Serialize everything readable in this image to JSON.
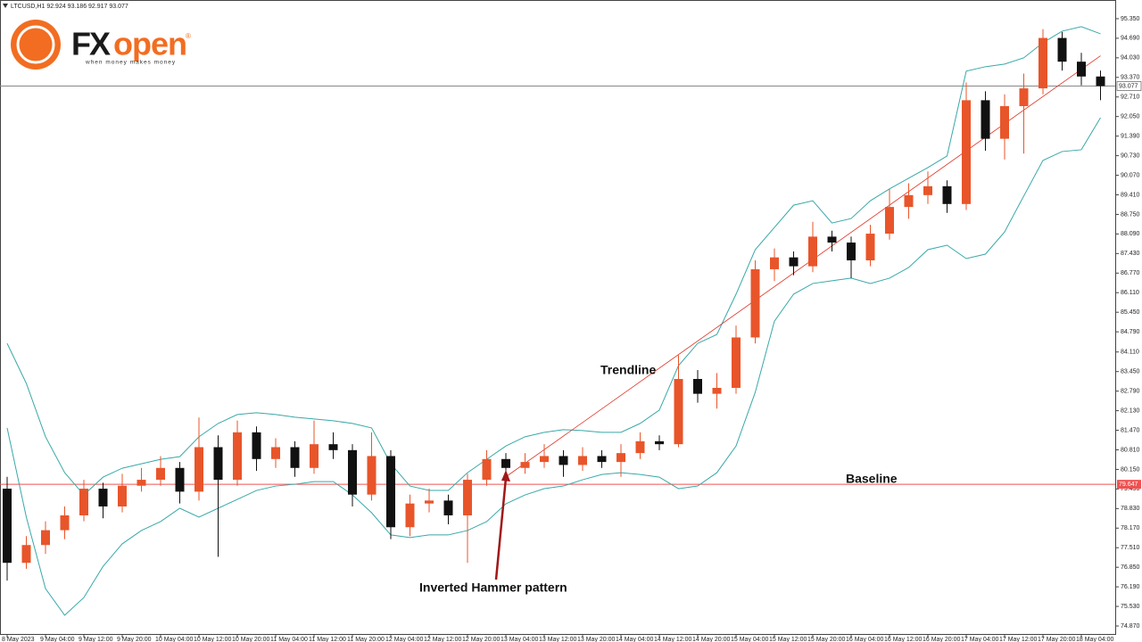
{
  "header": "LTCUSD,H1  92.924 93.186 92.917 93.077",
  "logo": {
    "brand_fx": "FX",
    "brand_open": "open",
    "mark": "®",
    "tagline": "when money makes money"
  },
  "chart_data": {
    "type": "candlestick",
    "categories": [
      "8 May 2023",
      null,
      "9 May 04:00",
      null,
      "9 May 12:00",
      null,
      "9 May 20:00",
      null,
      "10 May 04:00",
      null,
      "10 May 12:00",
      null,
      "10 May 20:00",
      null,
      "11 May 04:00",
      null,
      "11 May 12:00",
      null,
      "11 May 20:00",
      null,
      "12 May 04:00",
      null,
      "12 May 12:00",
      null,
      "12 May 20:00",
      null,
      "13 May 04:00",
      null,
      "13 May 12:00",
      null,
      "13 May 20:00",
      null,
      "14 May 04:00",
      null,
      "14 May 12:00",
      null,
      "14 May 20:00",
      null,
      "15 May 04:00",
      null,
      "15 May 12:00",
      null,
      "15 May 20:00",
      null,
      "16 May 04:00",
      null,
      "16 May 12:00",
      null,
      "16 May 20:00",
      null,
      "17 May 04:00",
      null,
      "17 May 12:00",
      null,
      "17 May 20:00",
      null,
      "18 May 04:00",
      null
    ],
    "open": [
      79.5,
      77.0,
      77.6,
      78.1,
      78.6,
      79.5,
      78.9,
      79.6,
      79.8,
      80.2,
      79.4,
      80.9,
      79.8,
      81.4,
      80.5,
      80.9,
      80.2,
      81.0,
      80.8,
      79.3,
      80.6,
      78.2,
      79.0,
      79.1,
      78.6,
      79.8,
      80.5,
      80.2,
      80.4,
      80.6,
      80.3,
      80.6,
      80.4,
      80.7,
      81.1,
      81.0,
      83.2,
      82.7,
      82.9,
      84.6,
      86.9,
      87.3,
      87.0,
      88.0,
      87.8,
      87.2,
      88.1,
      89.0,
      89.4,
      89.7,
      89.1,
      92.6,
      91.3,
      92.4,
      93.0,
      94.7,
      93.9,
      93.4
    ],
    "high": [
      79.9,
      77.9,
      78.4,
      78.9,
      79.8,
      79.7,
      80.0,
      80.2,
      80.6,
      80.4,
      81.9,
      81.3,
      81.8,
      81.6,
      81.2,
      81.1,
      81.8,
      81.4,
      81.0,
      81.4,
      80.8,
      79.3,
      79.5,
      79.3,
      80.0,
      80.8,
      80.7,
      80.7,
      81.0,
      80.8,
      80.9,
      80.8,
      81.0,
      81.4,
      81.3,
      84.0,
      83.5,
      83.4,
      85.0,
      87.2,
      87.6,
      87.5,
      88.5,
      88.2,
      88.0,
      88.4,
      89.6,
      89.8,
      90.2,
      89.9,
      93.2,
      92.9,
      92.8,
      93.5,
      95.0,
      94.9,
      94.2,
      93.6
    ],
    "low": [
      76.4,
      76.8,
      77.3,
      77.8,
      78.4,
      78.5,
      78.7,
      79.4,
      79.6,
      79.0,
      79.1,
      77.2,
      79.6,
      80.1,
      80.2,
      79.9,
      80.0,
      80.5,
      78.9,
      79.1,
      77.8,
      77.9,
      78.7,
      78.3,
      77.0,
      79.6,
      80.0,
      80.0,
      80.2,
      79.9,
      80.1,
      80.2,
      79.9,
      80.5,
      80.8,
      80.9,
      82.4,
      82.2,
      82.7,
      84.4,
      86.5,
      86.7,
      86.8,
      87.5,
      86.6,
      87.0,
      87.9,
      88.6,
      89.1,
      88.8,
      88.9,
      90.9,
      90.6,
      90.8,
      92.8,
      93.6,
      93.1,
      92.6
    ],
    "close": [
      77.0,
      77.6,
      78.1,
      78.6,
      79.5,
      78.9,
      79.6,
      79.8,
      80.2,
      79.4,
      80.9,
      79.8,
      81.4,
      80.5,
      80.9,
      80.2,
      81.0,
      80.8,
      79.3,
      80.6,
      78.2,
      79.0,
      79.1,
      78.6,
      79.8,
      80.5,
      80.2,
      80.4,
      80.6,
      80.3,
      80.6,
      80.4,
      80.7,
      81.1,
      81.0,
      83.2,
      82.7,
      82.9,
      84.6,
      86.9,
      87.3,
      87.0,
      88.0,
      87.8,
      87.2,
      88.1,
      89.0,
      89.4,
      89.7,
      89.1,
      92.6,
      91.3,
      92.4,
      93.0,
      94.7,
      93.9,
      93.4,
      93.08
    ],
    "up_color": "#e8552a",
    "down_color": "#111111",
    "bollinger_upper": [
      84.4,
      83.05,
      81.25,
      80.04,
      79.29,
      79.89,
      80.19,
      80.34,
      80.49,
      80.58,
      81.25,
      81.7,
      82.0,
      82.06,
      82.0,
      81.91,
      81.85,
      81.79,
      81.7,
      81.55,
      80.34,
      79.59,
      79.44,
      79.44,
      80.04,
      80.49,
      80.94,
      81.25,
      81.4,
      81.49,
      81.46,
      81.4,
      81.4,
      81.7,
      82.15,
      83.65,
      84.4,
      84.7,
      86.06,
      87.56,
      88.31,
      89.06,
      89.21,
      88.46,
      88.61,
      89.21,
      89.61,
      89.97,
      90.33,
      90.72,
      93.58,
      93.73,
      93.82,
      94.03,
      94.54,
      94.93,
      95.08,
      94.84
    ],
    "bollinger_lower": [
      81.55,
      78.54,
      76.13,
      75.23,
      75.83,
      76.88,
      77.64,
      78.09,
      78.39,
      78.84,
      78.54,
      78.84,
      79.14,
      79.44,
      79.59,
      79.65,
      79.74,
      79.74,
      79.29,
      78.69,
      77.94,
      77.85,
      77.94,
      77.94,
      78.09,
      78.39,
      78.99,
      79.29,
      79.5,
      79.59,
      79.8,
      79.98,
      80.04,
      79.98,
      79.89,
      79.5,
      79.59,
      80.04,
      80.94,
      82.75,
      85.15,
      86.06,
      86.42,
      86.51,
      86.6,
      86.42,
      86.6,
      86.96,
      87.56,
      87.71,
      87.26,
      87.41,
      88.16,
      89.37,
      90.57,
      90.87,
      90.93,
      92.01
    ],
    "band_color": "#3aa8a8",
    "trendline": {
      "label": "Trendline",
      "x": [
        26,
        57
      ],
      "y": [
        79.9,
        94.1
      ],
      "color": "#e03020"
    },
    "baseline": {
      "label": "Baseline",
      "value": 79.647,
      "color": "#f05050"
    },
    "current_price": 93.077,
    "annotation": "Inverted Hammer pattern",
    "ylim": [
      74.57,
      95.98
    ],
    "yticks": [
      {
        "value": 95.35,
        "label": "95.350"
      },
      {
        "value": 94.69,
        "label": "94.690"
      },
      {
        "value": 94.03,
        "label": "94.030"
      },
      {
        "value": 93.37,
        "label": "93.370"
      },
      {
        "value": 92.71,
        "label": "92.710"
      },
      {
        "value": 92.05,
        "label": "92.050"
      },
      {
        "value": 91.39,
        "label": "91.390"
      },
      {
        "value": 90.73,
        "label": "90.730"
      },
      {
        "value": 90.07,
        "label": "90.070"
      },
      {
        "value": 89.41,
        "label": "89.410"
      },
      {
        "value": 88.75,
        "label": "88.750"
      },
      {
        "value": 88.09,
        "label": "88.090"
      },
      {
        "value": 87.43,
        "label": "87.430"
      },
      {
        "value": 86.77,
        "label": "86.770"
      },
      {
        "value": 86.11,
        "label": "86.110"
      },
      {
        "value": 85.45,
        "label": "85.450"
      },
      {
        "value": 84.79,
        "label": "84.790"
      },
      {
        "value": 84.11,
        "label": "84.110"
      },
      {
        "value": 83.45,
        "label": "83.450"
      },
      {
        "value": 82.79,
        "label": "82.790"
      },
      {
        "value": 82.13,
        "label": "82.130"
      },
      {
        "value": 81.47,
        "label": "81.470"
      },
      {
        "value": 80.81,
        "label": "80.810"
      },
      {
        "value": 80.15,
        "label": "80.150"
      },
      {
        "value": 79.49,
        "label": "79.490"
      },
      {
        "value": 78.83,
        "label": "78.830"
      },
      {
        "value": 78.17,
        "label": "78.170"
      },
      {
        "value": 77.51,
        "label": "77.510"
      },
      {
        "value": 76.85,
        "label": "76.850"
      },
      {
        "value": 76.19,
        "label": "76.190"
      },
      {
        "value": 75.53,
        "label": "75.530"
      },
      {
        "value": 74.87,
        "label": "74.870"
      }
    ]
  }
}
